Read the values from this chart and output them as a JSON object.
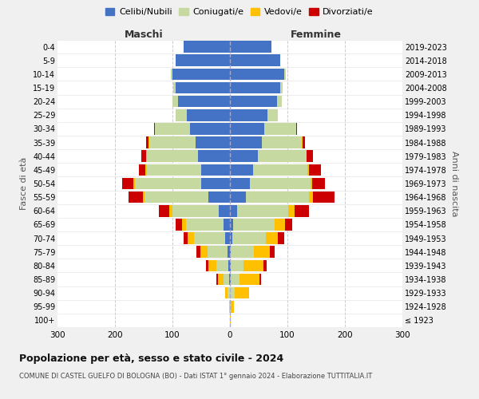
{
  "age_groups": [
    "100+",
    "95-99",
    "90-94",
    "85-89",
    "80-84",
    "75-79",
    "70-74",
    "65-69",
    "60-64",
    "55-59",
    "50-54",
    "45-49",
    "40-44",
    "35-39",
    "30-34",
    "25-29",
    "20-24",
    "15-19",
    "10-14",
    "5-9",
    "0-4"
  ],
  "birth_years": [
    "≤ 1923",
    "1924-1928",
    "1929-1933",
    "1934-1938",
    "1939-1943",
    "1944-1948",
    "1949-1953",
    "1954-1958",
    "1959-1963",
    "1964-1968",
    "1969-1973",
    "1974-1978",
    "1979-1983",
    "1984-1988",
    "1989-1993",
    "1994-1998",
    "1999-2003",
    "2004-2008",
    "2009-2013",
    "2014-2018",
    "2019-2023"
  ],
  "colors": {
    "celibe": "#4472c4",
    "coniugato": "#c5d9a0",
    "vedovo": "#ffc000",
    "divorziato": "#cc0000"
  },
  "maschi": {
    "celibe": [
      0,
      0,
      0,
      1,
      3,
      4,
      8,
      11,
      20,
      38,
      50,
      50,
      55,
      60,
      70,
      75,
      90,
      95,
      100,
      95,
      80
    ],
    "coniugato": [
      0,
      1,
      4,
      10,
      20,
      35,
      55,
      65,
      80,
      110,
      115,
      95,
      90,
      80,
      60,
      20,
      10,
      4,
      3,
      0,
      0
    ],
    "vedovo": [
      0,
      0,
      5,
      10,
      14,
      12,
      10,
      8,
      5,
      3,
      3,
      2,
      1,
      1,
      0,
      0,
      0,
      0,
      0,
      0,
      0
    ],
    "divorziato": [
      0,
      0,
      0,
      2,
      5,
      8,
      8,
      10,
      18,
      25,
      20,
      12,
      8,
      5,
      2,
      0,
      0,
      0,
      0,
      0,
      0
    ]
  },
  "femmine": {
    "nubile": [
      0,
      0,
      0,
      1,
      2,
      2,
      4,
      6,
      12,
      28,
      35,
      40,
      48,
      55,
      60,
      65,
      82,
      88,
      95,
      88,
      72
    ],
    "coniugata": [
      0,
      2,
      8,
      15,
      22,
      40,
      58,
      72,
      90,
      110,
      105,
      95,
      85,
      70,
      55,
      18,
      8,
      4,
      2,
      0,
      0
    ],
    "vedova": [
      2,
      5,
      25,
      35,
      35,
      28,
      22,
      18,
      10,
      6,
      3,
      2,
      1,
      1,
      0,
      0,
      0,
      0,
      0,
      0,
      0
    ],
    "divorziata": [
      0,
      0,
      0,
      3,
      5,
      8,
      10,
      12,
      25,
      38,
      22,
      22,
      10,
      5,
      2,
      0,
      0,
      0,
      0,
      0,
      0
    ]
  },
  "title": "Popolazione per età, sesso e stato civile - 2024",
  "subtitle": "COMUNE DI CASTEL GUELFO DI BOLOGNA (BO) - Dati ISTAT 1° gennaio 2024 - Elaborazione TUTTITALIA.IT",
  "xlabel_left": "Maschi",
  "xlabel_right": "Femmine",
  "ylabel_left": "Fasce di età",
  "ylabel_right": "Anni di nascita",
  "xlim": 300,
  "bg_color": "#f0f0f0",
  "plot_bg_color": "#ffffff",
  "legend_labels": [
    "Celibi/Nubili",
    "Coniugati/e",
    "Vedovi/e",
    "Divorziati/e"
  ]
}
